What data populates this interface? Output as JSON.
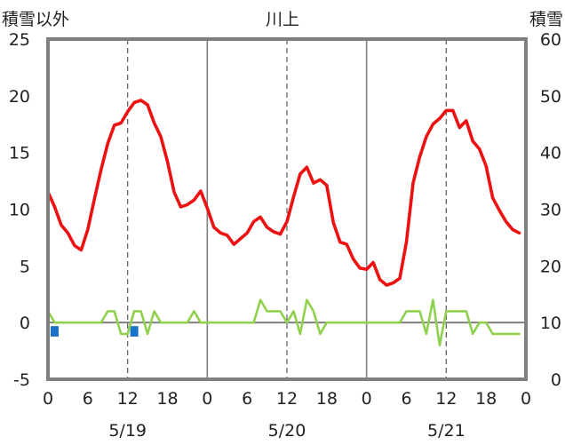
{
  "chart_data": {
    "type": "line",
    "title": "川上",
    "y_left_label": "積雪以外",
    "y_right_label": "積雪",
    "y_left_ticks": [
      "25",
      "20",
      "15",
      "10",
      "5",
      "0",
      "-5"
    ],
    "y_right_ticks": [
      "60",
      "50",
      "40",
      "30",
      "20",
      "10",
      "0"
    ],
    "ylim_left": [
      -5,
      25
    ],
    "ylim_right": [
      0,
      60
    ],
    "xlim_hours": [
      0,
      72
    ],
    "x_tick_labels": [
      "0",
      "6",
      "12",
      "18",
      "0",
      "6",
      "12",
      "18",
      "0",
      "6",
      "12",
      "18",
      "0"
    ],
    "date_labels": [
      "5/19",
      "5/20",
      "5/21"
    ],
    "grid": "dashed lines every 12 hours; solid lines at each day boundary",
    "colors": {
      "temperature": "#ee1111",
      "wind": "#8fd14f",
      "precipitation": "#1a73c8",
      "snow_depth": "#7030a0",
      "frame": "#7f7f7f"
    },
    "series": [
      {
        "key": "temperature",
        "axis": "left",
        "x": [
          0,
          1,
          2,
          3,
          4,
          5,
          6,
          7,
          8,
          9,
          10,
          11,
          12,
          13,
          14,
          15,
          16,
          17,
          18,
          19,
          20,
          21,
          22,
          23,
          24,
          25,
          26,
          27,
          28,
          29,
          30,
          31,
          32,
          33,
          34,
          35,
          36,
          37,
          38,
          39,
          40,
          41,
          42,
          43,
          44,
          45,
          46,
          47,
          48,
          49,
          50,
          51,
          52,
          53,
          54,
          55,
          56,
          57,
          58,
          59,
          60,
          61,
          62,
          63,
          64,
          65,
          66,
          67,
          68,
          69,
          70,
          71
        ],
        "values": [
          11.5,
          10.2,
          8.6,
          7.9,
          6.8,
          6.4,
          8.2,
          10.9,
          13.5,
          15.8,
          17.4,
          17.6,
          18.6,
          19.4,
          19.6,
          19.2,
          17.6,
          16.4,
          14.2,
          11.5,
          10.2,
          10.4,
          10.8,
          11.6,
          10.1,
          8.4,
          7.9,
          7.7,
          6.9,
          7.4,
          7.9,
          8.9,
          9.3,
          8.4,
          8.0,
          7.8,
          8.9,
          11.1,
          13.1,
          13.7,
          12.3,
          12.6,
          12.1,
          8.8,
          7.1,
          6.9,
          5.6,
          4.8,
          4.7,
          5.3,
          3.8,
          3.3,
          3.5,
          3.9,
          7.1,
          12.3,
          14.6,
          16.4,
          17.5,
          18.0,
          18.7,
          18.7,
          17.2,
          17.8,
          16.0,
          15.3,
          13.8,
          11.0,
          9.9,
          8.9,
          8.2,
          7.9
        ]
      },
      {
        "key": "wind",
        "axis": "left",
        "x": [
          0,
          1,
          2,
          3,
          4,
          5,
          6,
          7,
          8,
          9,
          10,
          11,
          12,
          13,
          14,
          15,
          16,
          17,
          18,
          19,
          20,
          21,
          22,
          23,
          24,
          25,
          26,
          27,
          28,
          29,
          30,
          31,
          32,
          33,
          34,
          35,
          36,
          37,
          38,
          39,
          40,
          41,
          42,
          43,
          44,
          45,
          46,
          47,
          48,
          49,
          50,
          51,
          52,
          53,
          54,
          55,
          56,
          57,
          58,
          59,
          60,
          61,
          62,
          63,
          64,
          65,
          66,
          67,
          68,
          69,
          70,
          71
        ],
        "values": [
          1,
          0,
          0,
          0,
          0,
          0,
          0,
          0,
          0,
          1,
          1,
          -1,
          -1,
          1,
          1,
          -1,
          1,
          0,
          0,
          0,
          0,
          0,
          1,
          0,
          0,
          0,
          0,
          0,
          0,
          0,
          0,
          0,
          2,
          1,
          1,
          1,
          0,
          1,
          -1,
          2,
          1,
          -1,
          0,
          0,
          0,
          0,
          0,
          0,
          0,
          0,
          0,
          0,
          0,
          0,
          1,
          1,
          1,
          -1,
          2,
          -2,
          1,
          1,
          1,
          1,
          -1,
          0,
          0,
          -1,
          -1,
          -1,
          -1,
          -1
        ]
      },
      {
        "key": "precipitation",
        "axis": "left",
        "type": "bar",
        "x": [
          1,
          13
        ],
        "values": [
          -1,
          -1
        ]
      },
      {
        "key": "snow_depth",
        "axis": "right",
        "x": [
          0,
          72
        ],
        "values": [
          0,
          0
        ]
      }
    ]
  }
}
